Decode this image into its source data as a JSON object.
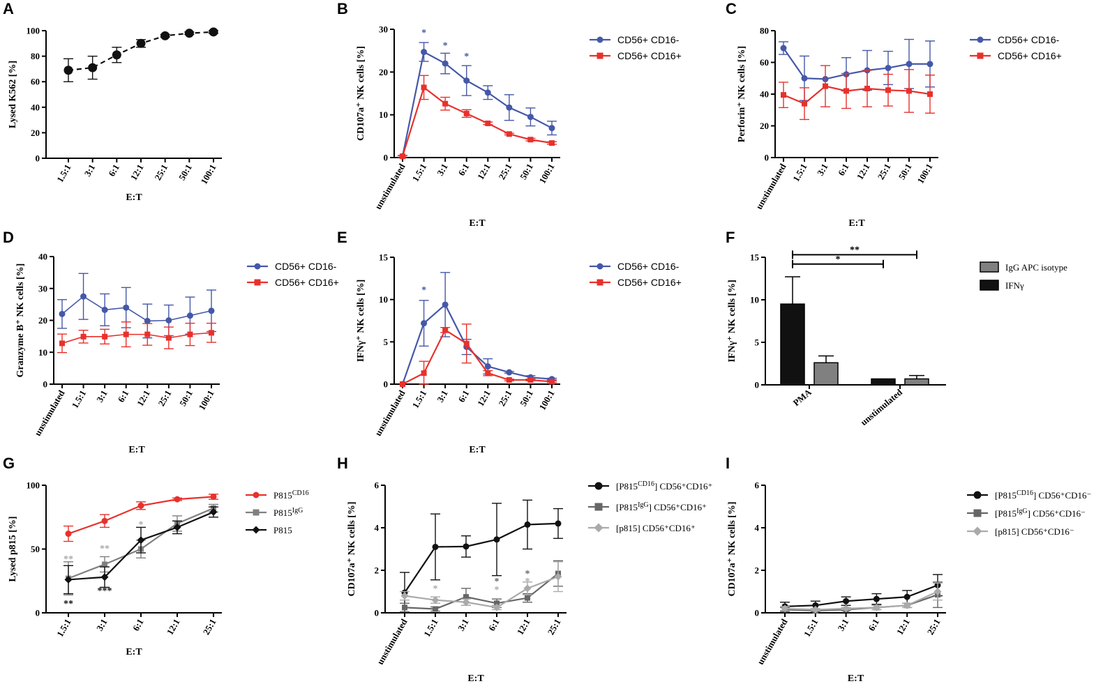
{
  "colors": {
    "blue": "#4558a8",
    "red": "#e8312c",
    "black": "#111111",
    "gray": "#808080",
    "lightgray": "#aaaaaa",
    "darkgray": "#666666"
  },
  "chart_data": [
    {
      "panel": "A",
      "type": "line",
      "xlabel": "E:T",
      "ylabel": "Lysed K562 [%]",
      "categories": [
        "1.5:1",
        "3:1",
        "6:1",
        "12:1",
        "25:1",
        "50:1",
        "100:1"
      ],
      "ylim": [
        0,
        100
      ],
      "yticks": [
        0,
        20,
        40,
        60,
        80,
        100
      ],
      "series": [
        {
          "name": "Lysed K562",
          "color": "black",
          "marker": "circle",
          "dashed": true,
          "values": [
            69,
            71,
            81,
            90,
            96,
            98,
            99
          ],
          "err": [
            9,
            9,
            6,
            3,
            1,
            1,
            1
          ]
        }
      ],
      "legend": []
    },
    {
      "panel": "B",
      "type": "line",
      "xlabel": "E:T",
      "ylabel": "CD107a⁺ NK cells [%]",
      "categories": [
        "unstimulated",
        "1.5:1",
        "3:1",
        "6:1",
        "12:1",
        "25:1",
        "50:1",
        "100:1"
      ],
      "ylim": [
        0,
        30
      ],
      "yticks": [
        0,
        10,
        20,
        30
      ],
      "series": [
        {
          "name": "CD56+ CD16-",
          "color": "blue",
          "marker": "circle",
          "values": [
            0.3,
            24.7,
            22,
            18,
            15.2,
            11.7,
            9.5,
            6.9
          ],
          "err": [
            0.2,
            2.2,
            2.4,
            3.5,
            1.6,
            3,
            2.1,
            1.6
          ]
        },
        {
          "name": "CD56+ CD16+",
          "color": "red",
          "marker": "square",
          "values": [
            0.3,
            16.4,
            12.6,
            10.3,
            8,
            5.5,
            4.2,
            3.4
          ],
          "err": [
            0.2,
            2.8,
            1.5,
            0.9,
            0.3,
            0.2,
            0.3,
            0.3
          ]
        }
      ],
      "annotations": [
        {
          "label": "*",
          "cat": 1,
          "y": 28.5,
          "color": "blue"
        },
        {
          "label": "*",
          "cat": 2,
          "y": 25.5,
          "color": "blue"
        },
        {
          "label": "*",
          "cat": 3,
          "y": 23,
          "color": "blue"
        }
      ],
      "legend": [
        "CD56+ CD16-",
        "CD56+ CD16+"
      ]
    },
    {
      "panel": "C",
      "type": "line",
      "xlabel": "E:T",
      "ylabel": "Perforin⁺ NK cells [%]",
      "categories": [
        "unstimulated",
        "1.5:1",
        "3:1",
        "6:1",
        "12:1",
        "25:1",
        "50:1",
        "100:1"
      ],
      "ylim": [
        0,
        80
      ],
      "yticks": [
        0,
        20,
        40,
        60,
        80
      ],
      "series": [
        {
          "name": "CD56+ CD16-",
          "color": "blue",
          "marker": "circle",
          "values": [
            69,
            50,
            49.5,
            52.5,
            55,
            56.5,
            59,
            59
          ],
          "err": [
            4,
            14,
            0,
            10.5,
            12.5,
            10.5,
            15.5,
            14.5
          ]
        },
        {
          "name": "CD56+ CD16+",
          "color": "red",
          "marker": "square",
          "values": [
            39.5,
            34,
            45,
            42,
            43.5,
            42.5,
            42,
            40
          ],
          "err": [
            8,
            10,
            13,
            11,
            11.5,
            10,
            13.5,
            12
          ]
        }
      ],
      "annotations": [],
      "legend": [
        "CD56+ CD16-",
        "CD56+ CD16+"
      ]
    },
    {
      "panel": "D",
      "type": "line",
      "xlabel": "E:T",
      "ylabel": "Granzyme B⁺ NK cells [%]",
      "categories": [
        "unstimulated",
        "1.5:1",
        "3:1",
        "6:1",
        "12:1",
        "25:1",
        "50:1",
        "100:1"
      ],
      "ylim": [
        0,
        40
      ],
      "yticks": [
        0,
        10,
        20,
        30,
        40
      ],
      "series": [
        {
          "name": "CD56+ CD16-",
          "color": "blue",
          "marker": "circle",
          "thin": true,
          "values": [
            22,
            27.5,
            23.3,
            24,
            19.8,
            20,
            21.5,
            23
          ],
          "err": [
            4.5,
            7.2,
            5,
            6.3,
            5.3,
            4.8,
            5.8,
            6.5
          ]
        },
        {
          "name": "CD56+ CD16+",
          "color": "red",
          "marker": "square",
          "thin": true,
          "values": [
            12.8,
            14.9,
            14.9,
            15.6,
            15.6,
            14.5,
            15.6,
            16.1
          ],
          "err": [
            2.9,
            2,
            2.3,
            3.9,
            3.4,
            3.4,
            3.5,
            3
          ]
        }
      ],
      "annotations": [],
      "legend": [
        "CD56+ CD16-",
        "CD56+ CD16+"
      ]
    },
    {
      "panel": "E",
      "type": "line",
      "xlabel": "E:T",
      "ylabel": "IFNγ⁺ NK cells [%]",
      "categories": [
        "unstimulated",
        "1.5:1",
        "3:1",
        "6:1",
        "12:1",
        "25:1",
        "50:1",
        "100:1"
      ],
      "ylim": [
        0,
        15
      ],
      "yticks": [
        0,
        5,
        10,
        15
      ],
      "series": [
        {
          "name": "CD56+ CD16-",
          "color": "blue",
          "marker": "circle",
          "values": [
            0,
            7.2,
            9.4,
            4.4,
            2.1,
            1.4,
            0.8,
            0.6
          ],
          "err": [
            0,
            2.7,
            3.8,
            0.9,
            0.9,
            0.1,
            0.2,
            0.1
          ]
        },
        {
          "name": "CD56+ CD16+",
          "color": "red",
          "marker": "square",
          "values": [
            0,
            1.3,
            6.4,
            4.8,
            1.3,
            0.5,
            0.5,
            0.3
          ],
          "err": [
            0,
            1.4,
            0.3,
            2.3,
            0.3,
            0.1,
            0.1,
            0.1
          ]
        }
      ],
      "annotations": [
        {
          "label": "*",
          "cat": 1,
          "y": 10.8,
          "color": "blue"
        }
      ],
      "legend": [
        "CD56+ CD16-",
        "CD56+ CD16+"
      ]
    },
    {
      "panel": "F",
      "type": "bar",
      "xlabel": "",
      "ylabel": "IFNγ⁺ NK cells [%]",
      "categories": [
        "PMA",
        "unstimulated"
      ],
      "ylim": [
        0,
        15
      ],
      "yticks": [
        0,
        5,
        10,
        15
      ],
      "series": [
        {
          "name": "IFNγ",
          "color": "black",
          "values": [
            9.5,
            0.7
          ],
          "err": [
            3.2,
            0
          ]
        },
        {
          "name": "IgG APC isotype",
          "color": "gray",
          "values": [
            2.6,
            0.7
          ],
          "err": [
            0.8,
            0.4
          ]
        }
      ],
      "brackets": [
        {
          "label": "*",
          "from": [
            0,
            0
          ],
          "to": [
            0,
            1
          ],
          "y": 14.2
        },
        {
          "label": "**",
          "from": [
            0,
            0
          ],
          "to": [
            1,
            1
          ],
          "y": 15.3
        }
      ],
      "legend": [
        "IgG APC isotype",
        "IFNγ"
      ]
    },
    {
      "panel": "G",
      "type": "line",
      "xlabel": "E:T",
      "ylabel": "Lysed p815 [%]",
      "categories": [
        "1.5:1",
        "3:1",
        "6:1",
        "12:1",
        "25:1"
      ],
      "ylim": [
        0,
        100
      ],
      "yticks": [
        0,
        50,
        100
      ],
      "series": [
        {
          "name": "P815",
          "sup": "CD16",
          "color": "red",
          "marker": "circle",
          "values": [
            62,
            72,
            84,
            89,
            91
          ],
          "err": [
            6,
            5,
            3,
            1,
            2
          ]
        },
        {
          "name": "P815",
          "sup": "IgG",
          "color": "gray",
          "marker": "square",
          "values": [
            27,
            38,
            50,
            70,
            82
          ],
          "err": [
            13,
            6,
            7,
            6,
            3
          ]
        },
        {
          "name": "P815",
          "sup": "",
          "color": "black",
          "marker": "diamond",
          "values": [
            26,
            28,
            57,
            67,
            79
          ],
          "err": [
            11,
            8,
            10,
            5,
            4
          ]
        }
      ],
      "annotations": [
        {
          "label": "**",
          "cat": 0,
          "y": 40,
          "color": "lightgray"
        },
        {
          "label": "**",
          "cat": 1,
          "y": 48,
          "color": "lightgray"
        },
        {
          "label": "*",
          "cat": 2,
          "y": 67,
          "color": "lightgray"
        },
        {
          "label": "**",
          "cat": 0,
          "y": 5,
          "color": "black"
        },
        {
          "label": "***",
          "cat": 1,
          "y": 15,
          "color": "black"
        }
      ],
      "legend": [
        "P815 CD16",
        "P815 IgG",
        "P815"
      ]
    },
    {
      "panel": "H",
      "type": "line",
      "xlabel": "E:T",
      "ylabel": "CD107a⁺ NK cells [%]",
      "categories": [
        "unstimulated",
        "1.5:1",
        "3:1",
        "6:1",
        "12:1",
        "25:1"
      ],
      "ylim": [
        0,
        6
      ],
      "yticks": [
        0,
        2,
        4,
        6
      ],
      "series": [
        {
          "name": "[P815",
          "sup": "CD16",
          "tail": "] CD56⁺CD16⁺",
          "color": "black",
          "marker": "circle",
          "values": [
            0.95,
            3.1,
            3.12,
            3.45,
            4.15,
            4.2
          ],
          "err": [
            0.95,
            1.55,
            0.5,
            1.7,
            1.15,
            0.7
          ]
        },
        {
          "name": "[P815",
          "sup": "IgG",
          "tail": "] CD56⁺CD16⁺",
          "color": "darkgray",
          "marker": "square",
          "values": [
            0.25,
            0.18,
            0.75,
            0.45,
            0.7,
            1.85
          ],
          "err": [
            0.2,
            0.1,
            0.4,
            0.2,
            0.2,
            0.6
          ]
        },
        {
          "name": "[p815] CD56⁺CD16⁺",
          "sup": "",
          "tail": "",
          "color": "lightgray",
          "marker": "diamond",
          "values": [
            0.8,
            0.6,
            0.5,
            0.25,
            1.15,
            1.7
          ],
          "err": [
            0.2,
            0.15,
            0.15,
            0.1,
            0.3,
            0.7
          ]
        }
      ],
      "annotations": [
        {
          "label": "*",
          "cat": 1,
          "y": 1.0,
          "color": "lightgray"
        },
        {
          "label": "*",
          "cat": 3,
          "y": 1.35,
          "color": "darkgray"
        },
        {
          "label": "*",
          "cat": 3,
          "y": 0.95,
          "color": "lightgray"
        },
        {
          "label": "*",
          "cat": 4,
          "y": 1.7,
          "color": "darkgray"
        },
        {
          "label": "*",
          "cat": 4,
          "y": 1.35,
          "color": "lightgray"
        }
      ],
      "legend": [
        "[P815CD16] CD56+CD16+",
        "[P815IgG] CD56+CD16+",
        "[p815] CD56+CD16+"
      ]
    },
    {
      "panel": "I",
      "type": "line",
      "xlabel": "E:T",
      "ylabel": "CD107a⁺ NK cells [%]",
      "categories": [
        "unstimulated",
        "1.5:1",
        "3:1",
        "6:1",
        "12:1",
        "25:1"
      ],
      "ylim": [
        0,
        6
      ],
      "yticks": [
        0,
        2,
        4,
        6
      ],
      "series": [
        {
          "name": "[P815",
          "sup": "CD16",
          "tail": "] CD56⁺CD16⁻",
          "color": "black",
          "marker": "circle",
          "values": [
            0.3,
            0.35,
            0.55,
            0.65,
            0.75,
            1.3
          ],
          "err": [
            0.2,
            0.2,
            0.2,
            0.25,
            0.3,
            0.5
          ]
        },
        {
          "name": "[P815",
          "sup": "IgG",
          "tail": "] CD56⁺CD16⁻",
          "color": "darkgray",
          "marker": "square",
          "values": [
            0.15,
            0.1,
            0.15,
            0.25,
            0.35,
            0.85
          ],
          "err": [
            0.1,
            0.05,
            0.05,
            0.1,
            0.1,
            0.6
          ]
        },
        {
          "name": "[p815] CD56⁺CD16⁻",
          "sup": "",
          "tail": "",
          "color": "lightgray",
          "marker": "diamond",
          "values": [
            0.2,
            0.15,
            0.2,
            0.25,
            0.35,
            1.0
          ],
          "err": [
            0.1,
            0.05,
            0.05,
            0.1,
            0.1,
            0.4
          ]
        }
      ],
      "annotations": [],
      "legend": [
        "[P815CD16] CD56+CD16-",
        "[P815IgG] CD56+CD16-",
        "[p815] CD56+CD16-"
      ]
    }
  ]
}
